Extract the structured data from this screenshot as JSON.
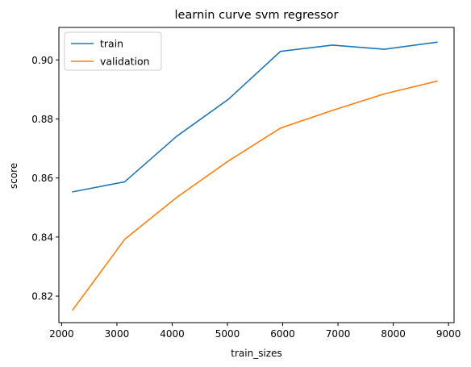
{
  "chart_data": {
    "type": "line",
    "title": "learnin curve svm regressor",
    "xlabel": "train_sizes",
    "ylabel": "score",
    "x": [
      2200,
      3140,
      4080,
      5020,
      5960,
      6900,
      7840,
      8790
    ],
    "xlim": [
      1950,
      9100
    ],
    "ylim": [
      0.811,
      0.911
    ],
    "xticks": [
      2000,
      3000,
      4000,
      5000,
      6000,
      7000,
      8000,
      9000
    ],
    "yticks": [
      0.82,
      0.84,
      0.86,
      0.88,
      0.9
    ],
    "xtick_labels": [
      "2000",
      "3000",
      "4000",
      "5000",
      "6000",
      "7000",
      "8000",
      "9000"
    ],
    "ytick_labels": [
      "0.82",
      "0.84",
      "0.86",
      "0.88",
      "0.90"
    ],
    "grid": false,
    "legend_position": "upper-left",
    "series": [
      {
        "name": "train",
        "color": "#1f77b4",
        "values": [
          0.8553,
          0.8587,
          0.8741,
          0.8867,
          0.9029,
          0.905,
          0.9036,
          0.906
        ]
      },
      {
        "name": "validation",
        "color": "#ff7f0e",
        "values": [
          0.8153,
          0.8392,
          0.8534,
          0.8658,
          0.8769,
          0.8829,
          0.8885,
          0.8928
        ]
      }
    ]
  }
}
